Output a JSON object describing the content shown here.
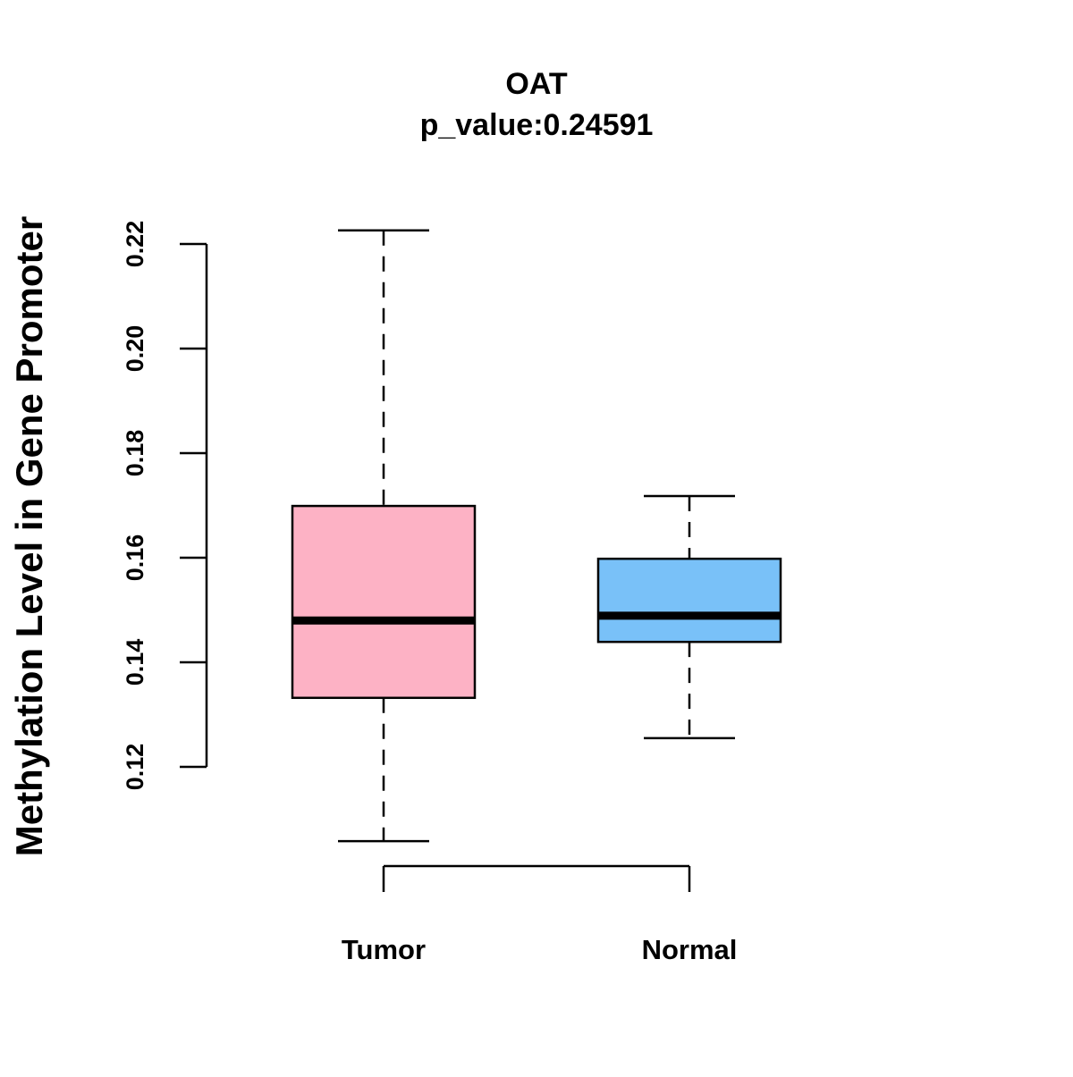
{
  "chart_data": {
    "type": "boxplot",
    "title": "OAT",
    "subtitle": "p_value:0.24591",
    "xlabel": "",
    "ylabel": "Methylation Level in Gene Promoter",
    "ylim": [
      0.12,
      0.22
    ],
    "yticks": [
      0.12,
      0.14,
      0.16,
      0.18,
      0.2,
      0.22
    ],
    "ytick_labels": [
      "0.12",
      "0.14",
      "0.16",
      "0.18",
      "0.20",
      "0.22"
    ],
    "categories": [
      "Tumor",
      "Normal"
    ],
    "series": [
      {
        "name": "Tumor",
        "color": "#FDB2C5",
        "whisker_low": 0.1058,
        "q1": 0.1332,
        "median": 0.148,
        "q3": 0.1699,
        "whisker_high": 0.2226
      },
      {
        "name": "Normal",
        "color": "#79C1F8",
        "whisker_low": 0.1255,
        "q1": 0.1439,
        "median": 0.1489,
        "q3": 0.1598,
        "whisker_high": 0.1718
      }
    ],
    "grid": false,
    "legend": "none"
  }
}
